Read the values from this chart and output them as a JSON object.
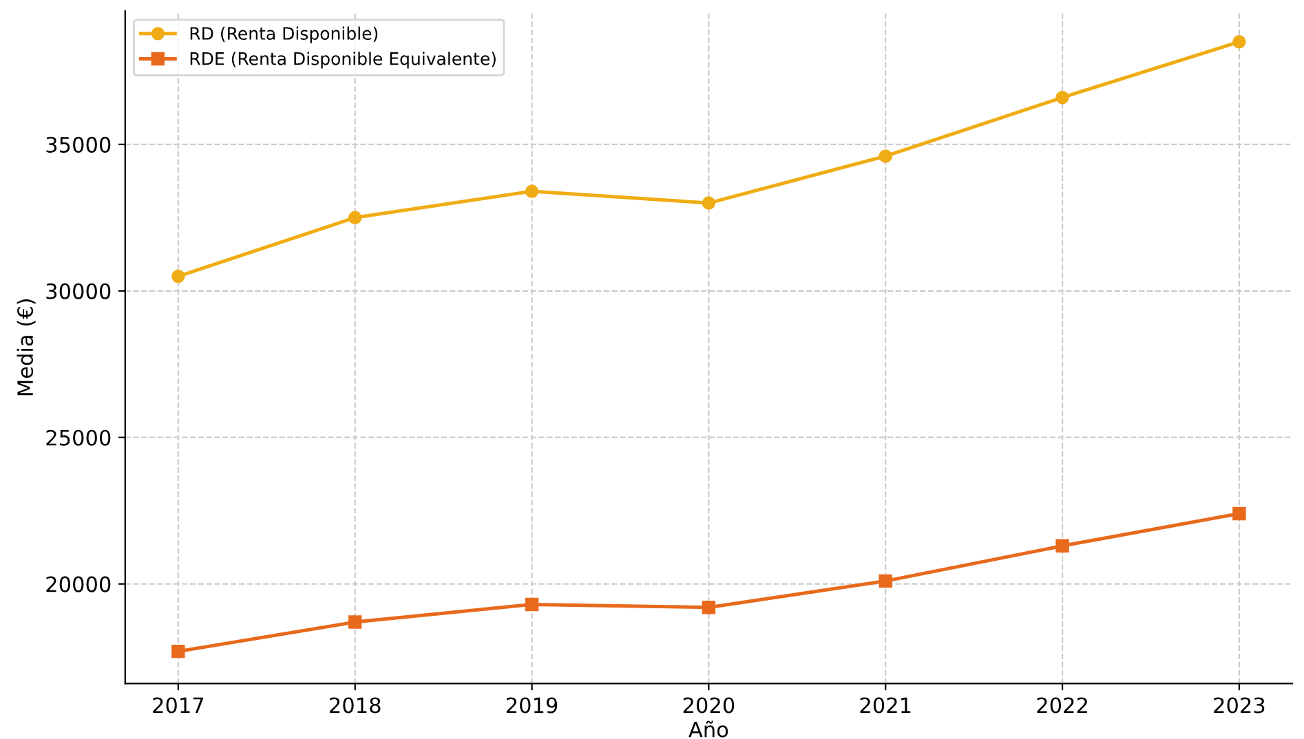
{
  "chart_data": {
    "type": "line",
    "xlabel": "Año",
    "ylabel": "Media (€)",
    "x": [
      2017,
      2018,
      2019,
      2020,
      2021,
      2022,
      2023
    ],
    "series": [
      {
        "name": "RD (Renta Disponible)",
        "color": "#f0ac14",
        "marker": "circle",
        "values": [
          30500,
          32500,
          33400,
          33000,
          34600,
          36600,
          38500
        ]
      },
      {
        "name": "RDE (Renta Disponible Equivalente)",
        "color": "#e8691c",
        "marker": "square",
        "values": [
          17700,
          18700,
          19300,
          19200,
          20100,
          21300,
          22400
        ]
      }
    ],
    "xlim": [
      2016.7,
      2023.3
    ],
    "xticks": [
      2017,
      2018,
      2019,
      2020,
      2021,
      2022,
      2023
    ],
    "ylim": [
      16600,
      39550
    ],
    "yticks": [
      20000,
      25000,
      30000,
      35000
    ],
    "grid": true,
    "legend": "top left",
    "line_style": "solid"
  }
}
